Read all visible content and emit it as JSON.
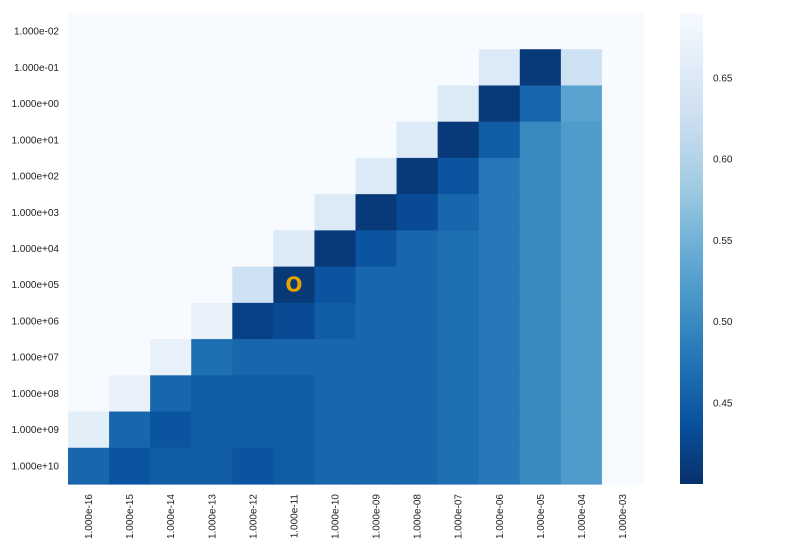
{
  "chart_data": {
    "type": "heatmap",
    "x_labels": [
      "1.000e-16",
      "1.000e-15",
      "1.000e-14",
      "1.000e-13",
      "1.000e-12",
      "1.000e-11",
      "1.000e-10",
      "1.000e-09",
      "1.000e-08",
      "1.000e-07",
      "1.000e-06",
      "1.000e-05",
      "1.000e-04",
      "1.000e-03"
    ],
    "y_labels": [
      "1.000e-02",
      "1.000e-01",
      "1.000e+00",
      "1.000e+01",
      "1.000e+02",
      "1.000e+03",
      "1.000e+04",
      "1.000e+05",
      "1.000e+06",
      "1.000e+07",
      "1.000e+08",
      "1.000e+09",
      "1.000e+10"
    ],
    "values": [
      [
        0.69,
        0.69,
        0.69,
        0.69,
        0.69,
        0.69,
        0.69,
        0.69,
        0.69,
        0.69,
        0.69,
        0.69,
        0.69,
        0.69
      ],
      [
        0.69,
        0.69,
        0.69,
        0.69,
        0.69,
        0.69,
        0.69,
        0.69,
        0.69,
        0.69,
        0.65,
        0.41,
        0.63,
        0.69
      ],
      [
        0.69,
        0.69,
        0.69,
        0.69,
        0.69,
        0.69,
        0.69,
        0.69,
        0.69,
        0.65,
        0.41,
        0.46,
        0.53,
        0.69
      ],
      [
        0.69,
        0.69,
        0.69,
        0.69,
        0.69,
        0.69,
        0.69,
        0.69,
        0.65,
        0.41,
        0.45,
        0.5,
        0.52,
        0.69
      ],
      [
        0.69,
        0.69,
        0.69,
        0.69,
        0.69,
        0.69,
        0.69,
        0.65,
        0.41,
        0.44,
        0.48,
        0.5,
        0.52,
        0.69
      ],
      [
        0.69,
        0.69,
        0.69,
        0.69,
        0.69,
        0.69,
        0.65,
        0.41,
        0.43,
        0.46,
        0.48,
        0.5,
        0.52,
        0.69
      ],
      [
        0.69,
        0.69,
        0.69,
        0.69,
        0.69,
        0.65,
        0.41,
        0.44,
        0.46,
        0.47,
        0.48,
        0.5,
        0.52,
        0.69
      ],
      [
        0.69,
        0.69,
        0.69,
        0.69,
        0.63,
        0.41,
        0.44,
        0.46,
        0.46,
        0.47,
        0.48,
        0.5,
        0.52,
        0.69
      ],
      [
        0.69,
        0.69,
        0.69,
        0.67,
        0.42,
        0.43,
        0.45,
        0.46,
        0.46,
        0.47,
        0.48,
        0.5,
        0.52,
        0.69
      ],
      [
        0.69,
        0.69,
        0.67,
        0.47,
        0.46,
        0.46,
        0.46,
        0.46,
        0.46,
        0.47,
        0.48,
        0.5,
        0.52,
        0.69
      ],
      [
        0.69,
        0.67,
        0.46,
        0.45,
        0.45,
        0.45,
        0.46,
        0.46,
        0.46,
        0.47,
        0.48,
        0.5,
        0.52,
        0.69
      ],
      [
        0.66,
        0.46,
        0.44,
        0.45,
        0.45,
        0.45,
        0.46,
        0.46,
        0.46,
        0.47,
        0.48,
        0.5,
        0.52,
        0.69
      ],
      [
        0.46,
        0.44,
        0.45,
        0.45,
        0.44,
        0.45,
        0.46,
        0.46,
        0.46,
        0.47,
        0.48,
        0.5,
        0.52,
        0.69
      ]
    ],
    "marker": {
      "text": "O",
      "color": "#e8a200",
      "x": "1.000e-11",
      "y": "1.000e+05"
    },
    "colorbar": {
      "vmin": 0.4,
      "vmax": 0.69,
      "ticks": [
        "0.45",
        "0.50",
        "0.55",
        "0.60",
        "0.65"
      ],
      "colormap": "Blues_r"
    },
    "grid": false,
    "xlabel": "",
    "ylabel": "",
    "title": ""
  }
}
